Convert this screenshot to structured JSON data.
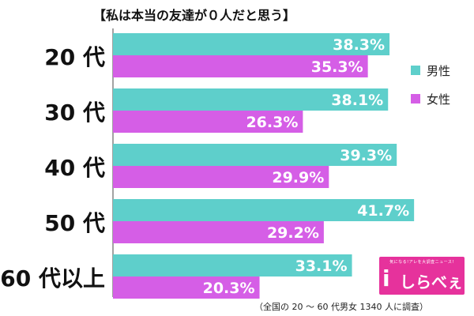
{
  "title": "【私は本当の友達が０人だと思う】",
  "note": "（全国の 20 〜 60 代男女 1340 人に調査）",
  "logo": {
    "tagline": "気になる!アレを大調査ニュース!",
    "text": "しらべぇ",
    "mark": "i"
  },
  "colors": {
    "male": "#5ecfcb",
    "female": "#d55ee6",
    "brand": "#e6329c"
  },
  "chart_data": {
    "type": "bar",
    "orientation": "horizontal",
    "categories": [
      "20 代",
      "30 代",
      "40 代",
      "50 代",
      "60 代以上"
    ],
    "series": [
      {
        "name": "男性",
        "values": [
          38.3,
          38.1,
          39.3,
          41.7,
          33.1
        ],
        "color": "#5ecfcb"
      },
      {
        "name": "女性",
        "values": [
          35.3,
          26.3,
          29.9,
          29.2,
          20.3
        ],
        "color": "#d55ee6"
      }
    ],
    "value_labels": {
      "男性": [
        "38.3%",
        "38.1%",
        "39.3%",
        "41.7%",
        "33.1%"
      ],
      "女性": [
        "35.3%",
        "26.3%",
        "29.9%",
        "29.2%",
        "20.3%"
      ]
    },
    "xlim": [
      0,
      50
    ],
    "legend": "right"
  }
}
